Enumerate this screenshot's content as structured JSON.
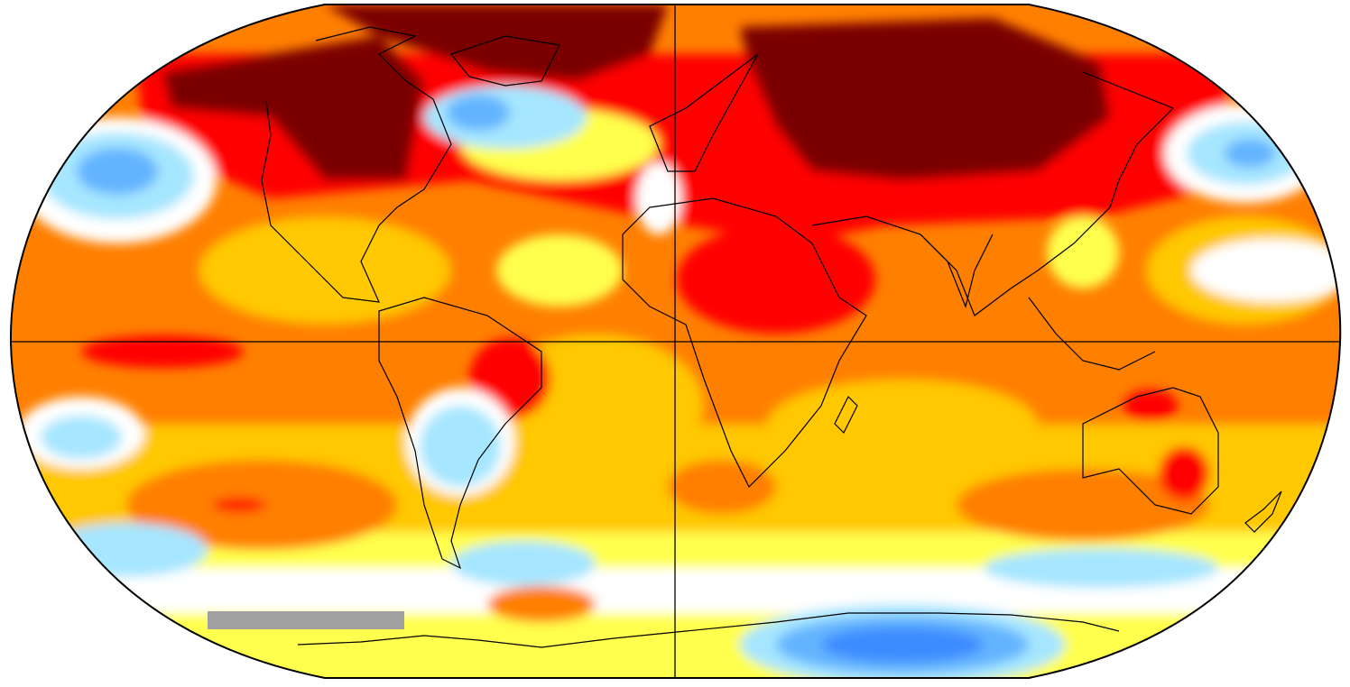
{
  "map": {
    "projection": "robinson-like",
    "title": "",
    "legend": "",
    "colors": {
      "dark_red": "#7a0000",
      "red": "#ff0000",
      "orange": "#ff7f00",
      "gold": "#ffc800",
      "yellow": "#ffff4d",
      "pale_yellow": "#ffffb0",
      "white": "#ffffff",
      "pale_green": "#dcf5dc",
      "light_blue": "#a6e6ff",
      "blue": "#64b4ff",
      "medium_blue": "#3c8cff",
      "no_data_gray": "#a0a0a0",
      "coastline": "#000000",
      "frame": "#000000"
    },
    "grid_lines": [
      "equator",
      "prime-meridian"
    ]
  }
}
